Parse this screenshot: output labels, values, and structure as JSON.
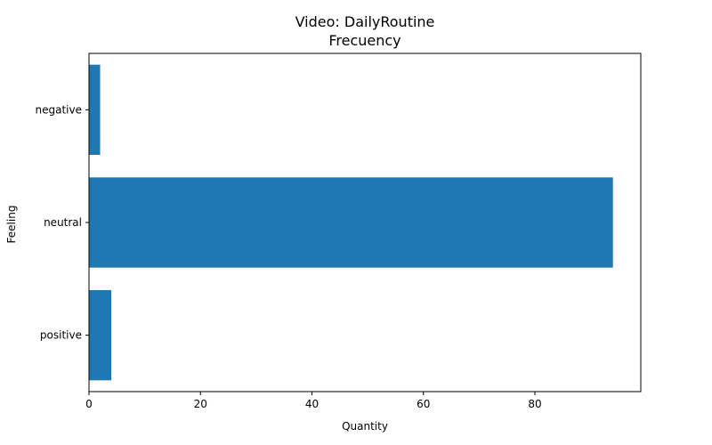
{
  "chart_data": {
    "type": "bar",
    "orientation": "horizontal",
    "title_lines": [
      "Video: DailyRoutine",
      "Frecuency"
    ],
    "xlabel": "Quantity",
    "ylabel": "Feeling",
    "categories": [
      "negative",
      "neutral",
      "positive"
    ],
    "values": [
      2,
      94,
      4
    ],
    "xlim": [
      0,
      99
    ],
    "xticks": [
      0,
      20,
      40,
      60,
      80
    ],
    "grid": false,
    "bar_color": "#1f77b4"
  }
}
